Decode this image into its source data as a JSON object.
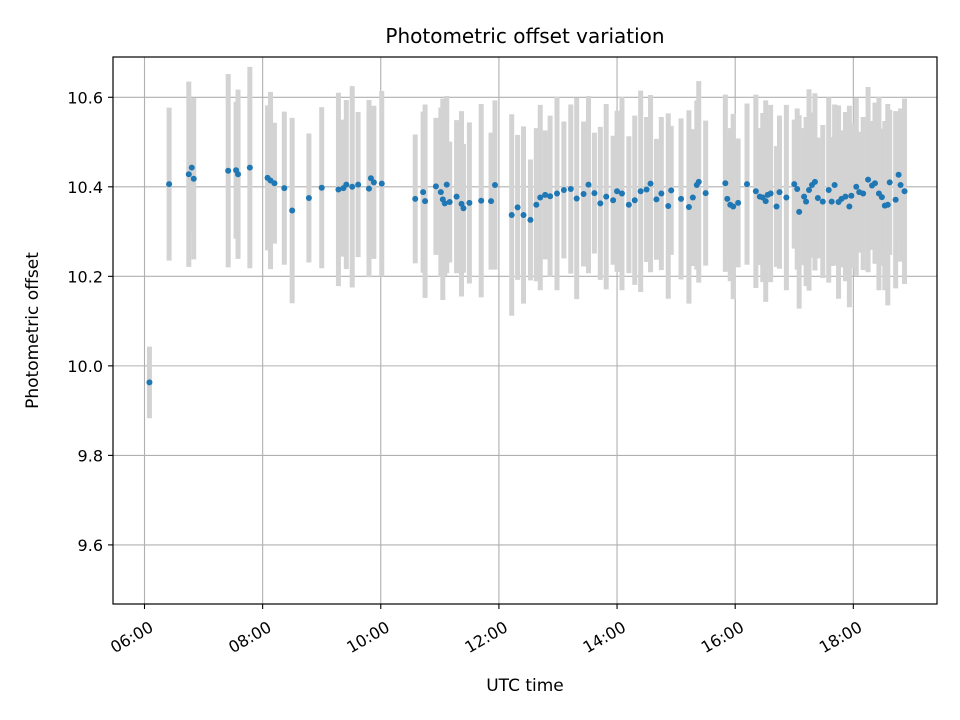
{
  "chart_data": {
    "type": "scatter",
    "title": "Photometric offset variation",
    "xlabel": "UTC time",
    "ylabel": "Photometric offset",
    "x_ticks": [
      "06:00",
      "08:00",
      "10:00",
      "12:00",
      "14:00",
      "16:00",
      "18:00"
    ],
    "y_ticks": [
      "9.6",
      "9.8",
      "10.0",
      "10.2",
      "10.4",
      "10.6"
    ],
    "xlim": [
      "05:28",
      "19:25"
    ],
    "ylim": [
      9.468,
      10.69
    ],
    "grid": true,
    "marker_color": "#1f77b4",
    "errorbar_color": "#d3d3d3",
    "series": [
      {
        "x": [
          "06:05",
          "06:25",
          "06:45",
          "06:48",
          "06:50",
          "07:25",
          "07:33",
          "07:35",
          "07:47",
          "08:05",
          "08:08",
          "08:12",
          "08:22",
          "08:30",
          "08:47",
          "09:00",
          "09:17",
          "09:22",
          "09:25",
          "09:31",
          "09:37",
          "09:48",
          "09:50",
          "09:53",
          "10:01",
          "10:35",
          "10:43",
          "10:45",
          "10:56",
          "11:01",
          "11:03",
          "11:05",
          "11:07",
          "11:10",
          "11:17",
          "11:22",
          "11:24",
          "11:30",
          "11:42",
          "11:52",
          "11:56",
          "12:13",
          "12:19",
          "12:25",
          "12:32",
          "12:38",
          "12:42",
          "12:47",
          "12:52",
          "12:59",
          "13:06",
          "13:13",
          "13:19",
          "13:26",
          "13:31",
          "13:37",
          "13:43",
          "13:49",
          "13:56",
          "14:00",
          "14:05",
          "14:12",
          "14:18",
          "14:24",
          "14:30",
          "14:34",
          "14:40",
          "14:45",
          "14:52",
          "14:55",
          "15:05",
          "15:13",
          "15:17",
          "15:21",
          "15:23",
          "15:30",
          "15:50",
          "15:52",
          "15:55",
          "15:58",
          "16:03",
          "16:12",
          "16:21",
          "16:25",
          "16:28",
          "16:31",
          "16:33",
          "16:36",
          "16:42",
          "16:45",
          "16:52",
          "17:00",
          "17:03",
          "17:05",
          "17:10",
          "17:12",
          "17:15",
          "17:18",
          "17:21",
          "17:24",
          "17:29",
          "17:35",
          "17:38",
          "17:41",
          "17:45",
          "17:48",
          "17:52",
          "17:56",
          "17:58",
          "18:03",
          "18:06",
          "18:10",
          "18:15",
          "18:19",
          "18:22",
          "18:26",
          "18:29",
          "18:32",
          "18:35",
          "18:37",
          "18:43",
          "18:46",
          "18:48",
          "18:52"
        ],
        "y": [
          9.963,
          10.406,
          10.428,
          10.443,
          10.418,
          10.436,
          10.437,
          10.428,
          10.443,
          10.42,
          10.414,
          10.408,
          10.397,
          10.347,
          10.375,
          10.398,
          10.394,
          10.397,
          10.405,
          10.4,
          10.405,
          10.396,
          10.419,
          10.41,
          10.407,
          10.373,
          10.388,
          10.368,
          10.401,
          10.388,
          10.372,
          10.363,
          10.405,
          10.366,
          10.378,
          10.362,
          10.352,
          10.364,
          10.369,
          10.368,
          10.404,
          10.337,
          10.354,
          10.337,
          10.326,
          10.36,
          10.376,
          10.382,
          10.379,
          10.385,
          10.393,
          10.395,
          10.374,
          10.384,
          10.405,
          10.386,
          10.363,
          10.378,
          10.37,
          10.39,
          10.385,
          10.36,
          10.37,
          10.39,
          10.394,
          10.407,
          10.372,
          10.385,
          10.357,
          10.392,
          10.373,
          10.355,
          10.376,
          10.404,
          10.411,
          10.386,
          10.408,
          10.373,
          10.36,
          10.356,
          10.364,
          10.406,
          10.39,
          10.378,
          10.376,
          10.368,
          10.382,
          10.385,
          10.356,
          10.388,
          10.376,
          10.406,
          10.395,
          10.344,
          10.378,
          10.367,
          10.393,
          10.404,
          10.411,
          10.375,
          10.367,
          10.393,
          10.367,
          10.404,
          10.366,
          10.373,
          10.378,
          10.356,
          10.38,
          10.4,
          10.388,
          10.385,
          10.416,
          10.403,
          10.408,
          10.385,
          10.377,
          10.358,
          10.36,
          10.41,
          10.371,
          10.427,
          10.404,
          10.39
        ]
      }
    ]
  }
}
